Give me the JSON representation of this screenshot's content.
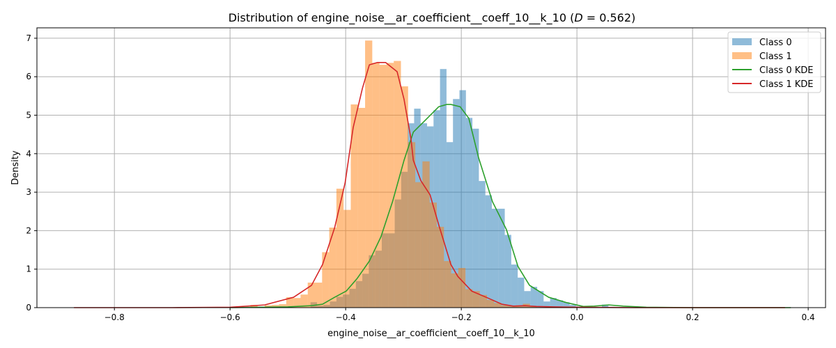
{
  "chart_data": {
    "type": "histogram",
    "title": {
      "prefix": "Distribution of engine_noise__ar_coefficient__coeff_10__k_10 (",
      "stat_symbol": "D",
      "stat_value": " = 0.562)"
    },
    "xlabel": "engine_noise__ar_coefficient__coeff_10__k_10",
    "ylabel": "Density",
    "xlim": [
      -0.934,
      0.43
    ],
    "ylim": [
      0,
      7.27
    ],
    "xticks": [
      -0.8,
      -0.6,
      -0.4,
      -0.2,
      0.0,
      0.2,
      0.4
    ],
    "xtick_labels": [
      "−0.8",
      "−0.6",
      "−0.4",
      "−0.2",
      "0.0",
      "0.2",
      "0.4"
    ],
    "yticks": [
      0,
      1,
      2,
      3,
      4,
      5,
      6,
      7
    ],
    "ytick_labels": [
      "0",
      "1",
      "2",
      "3",
      "4",
      "5",
      "6",
      "7"
    ],
    "grid": true,
    "legend_position": "top-right",
    "series": [
      {
        "name": "Class 0",
        "kind": "histogram",
        "color": "#1f77b4",
        "alpha": 0.5,
        "bin_start": -0.4608,
        "bin_width": 0.0112,
        "values": [
          0.14,
          0.05,
          0.07,
          0.16,
          0.28,
          0.34,
          0.49,
          0.69,
          0.88,
          1.36,
          1.48,
          1.93,
          1.93,
          2.81,
          3.53,
          4.79,
          5.17,
          4.79,
          4.71,
          5.13,
          6.2,
          4.3,
          5.42,
          5.65,
          4.93,
          4.65,
          3.29,
          2.92,
          2.57,
          2.57,
          1.89,
          1.12,
          0.78,
          0.43,
          0.54,
          0.43,
          0.16,
          0.25,
          0.19,
          0.14,
          0.07,
          0.03,
          0.01,
          0,
          0,
          0.08,
          0.02
        ]
      },
      {
        "name": "Class 1",
        "kind": "histogram",
        "color": "#ff7f0e",
        "alpha": 0.5,
        "bin_start": -0.5648,
        "bin_width": 0.0124,
        "values": [
          0.07,
          0.02,
          0.06,
          0.07,
          0.09,
          0.27,
          0.25,
          0.34,
          0.65,
          0.65,
          1.44,
          2.08,
          3.09,
          2.54,
          5.28,
          5.19,
          6.94,
          6.36,
          6.31,
          6.36,
          6.41,
          5.75,
          4.3,
          3.26,
          3.8,
          2.73,
          2.1,
          1.21,
          0.89,
          1.03,
          0.48,
          0.43,
          0.33,
          0.2,
          0.12,
          0.06,
          0.04,
          0.06,
          0.1,
          0.04
        ]
      },
      {
        "name": "Class 0 KDE",
        "kind": "line",
        "color": "#2ca02c",
        "x": [
          -0.6,
          -0.5,
          -0.46,
          -0.44,
          -0.419,
          -0.399,
          -0.38,
          -0.359,
          -0.339,
          -0.319,
          -0.299,
          -0.283,
          -0.263,
          -0.239,
          -0.225,
          -0.218,
          -0.202,
          -0.187,
          -0.17,
          -0.146,
          -0.122,
          -0.102,
          -0.082,
          -0.049,
          -0.018,
          0.011,
          0.03,
          0.055,
          0.08,
          0.12,
          0.2,
          0.37
        ],
        "y": [
          0.0,
          0.02,
          0.05,
          0.09,
          0.27,
          0.43,
          0.76,
          1.21,
          1.84,
          2.75,
          3.83,
          4.56,
          4.86,
          5.22,
          5.28,
          5.28,
          5.22,
          4.92,
          3.89,
          2.75,
          2.03,
          1.07,
          0.58,
          0.27,
          0.13,
          0.03,
          0.04,
          0.07,
          0.04,
          0.01,
          0.0,
          0.0
        ]
      },
      {
        "name": "Class 1 KDE",
        "kind": "line",
        "color": "#d62728",
        "x": [
          -0.87,
          -0.7,
          -0.6,
          -0.54,
          -0.49,
          -0.459,
          -0.44,
          -0.419,
          -0.401,
          -0.387,
          -0.371,
          -0.359,
          -0.345,
          -0.331,
          -0.311,
          -0.299,
          -0.287,
          -0.283,
          -0.27,
          -0.254,
          -0.239,
          -0.218,
          -0.206,
          -0.182,
          -0.154,
          -0.13,
          -0.11,
          -0.09,
          -0.07,
          -0.04,
          0.0,
          0.1,
          0.36
        ],
        "y": [
          0.0,
          0.0,
          0.01,
          0.07,
          0.27,
          0.58,
          1.12,
          2.08,
          3.24,
          4.68,
          5.7,
          6.31,
          6.37,
          6.37,
          6.13,
          5.41,
          4.38,
          3.83,
          3.3,
          2.93,
          2.15,
          1.12,
          0.81,
          0.43,
          0.25,
          0.09,
          0.04,
          0.05,
          0.03,
          0.02,
          0.01,
          0.0,
          0.0
        ]
      }
    ]
  }
}
